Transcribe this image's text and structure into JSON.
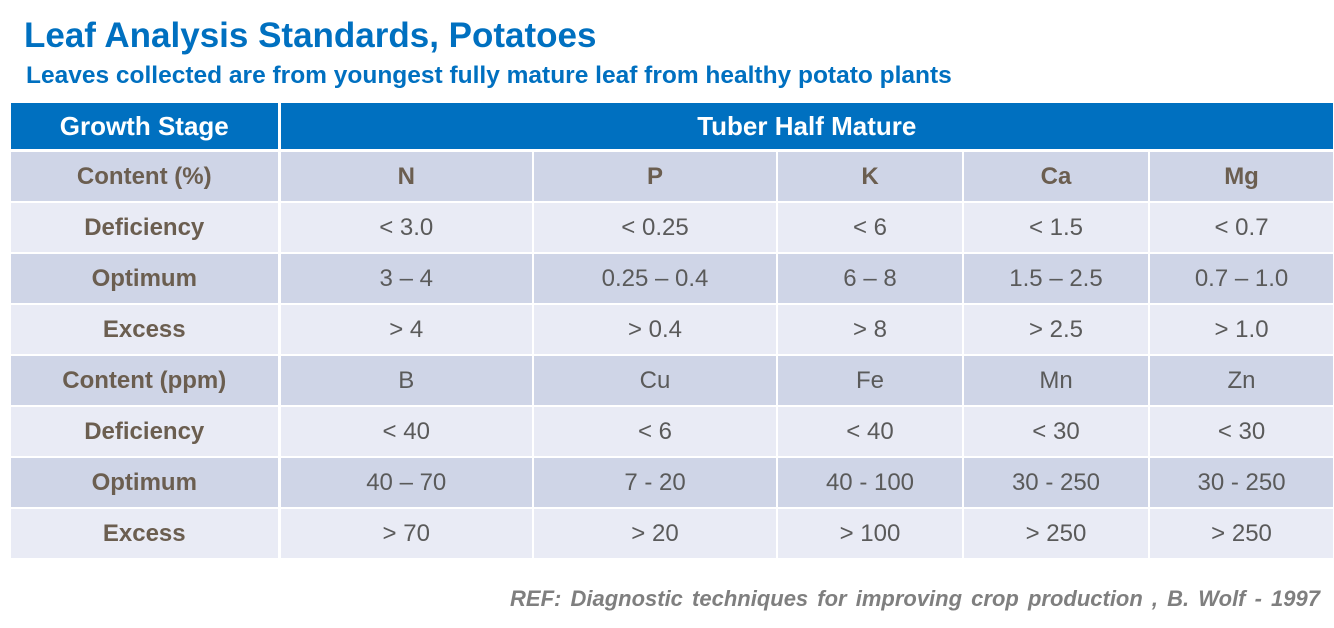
{
  "title": "Leaf Analysis Standards, Potatoes",
  "subtitle": "Leaves collected are from youngest fully mature leaf from healthy potato plants",
  "table": {
    "header": {
      "label": "Growth Stage",
      "value": "Tuber Half Mature"
    },
    "rows": [
      {
        "label": "Content (%)",
        "cells": [
          "N",
          "P",
          "K",
          "Ca",
          "Mg"
        ]
      },
      {
        "label": "Deficiency",
        "cells": [
          "< 3.0",
          "< 0.25",
          "< 6",
          "< 1.5",
          "< 0.7"
        ]
      },
      {
        "label": "Optimum",
        "cells": [
          "3 – 4",
          "0.25 – 0.4",
          "6 – 8",
          "1.5 – 2.5",
          "0.7 – 1.0"
        ]
      },
      {
        "label": "Excess",
        "cells": [
          "> 4",
          "> 0.4",
          "> 8",
          "> 2.5",
          "> 1.0"
        ]
      },
      {
        "label": "Content (ppm)",
        "cells": [
          "B",
          "Cu",
          "Fe",
          "Mn",
          "Zn"
        ]
      },
      {
        "label": "Deficiency",
        "cells": [
          "< 40",
          "< 6",
          "< 40",
          "< 30",
          "< 30"
        ]
      },
      {
        "label": "Optimum",
        "cells": [
          "40 – 70",
          "7 - 20",
          "40 - 100",
          "30 - 250",
          "30 - 250"
        ]
      },
      {
        "label": "Excess",
        "cells": [
          "> 70",
          "> 20",
          "> 100",
          "> 250",
          "> 250"
        ]
      }
    ]
  },
  "reference": "REF: Diagnostic  techniques  for  improving  crop  production  ,  B. Wolf - 1997",
  "colors": {
    "accent": "#0070C0",
    "row_dark": "#CFD5E7",
    "row_light": "#E9EBF5",
    "label_text": "#6b5e50",
    "cell_text": "#5a5a5a"
  }
}
